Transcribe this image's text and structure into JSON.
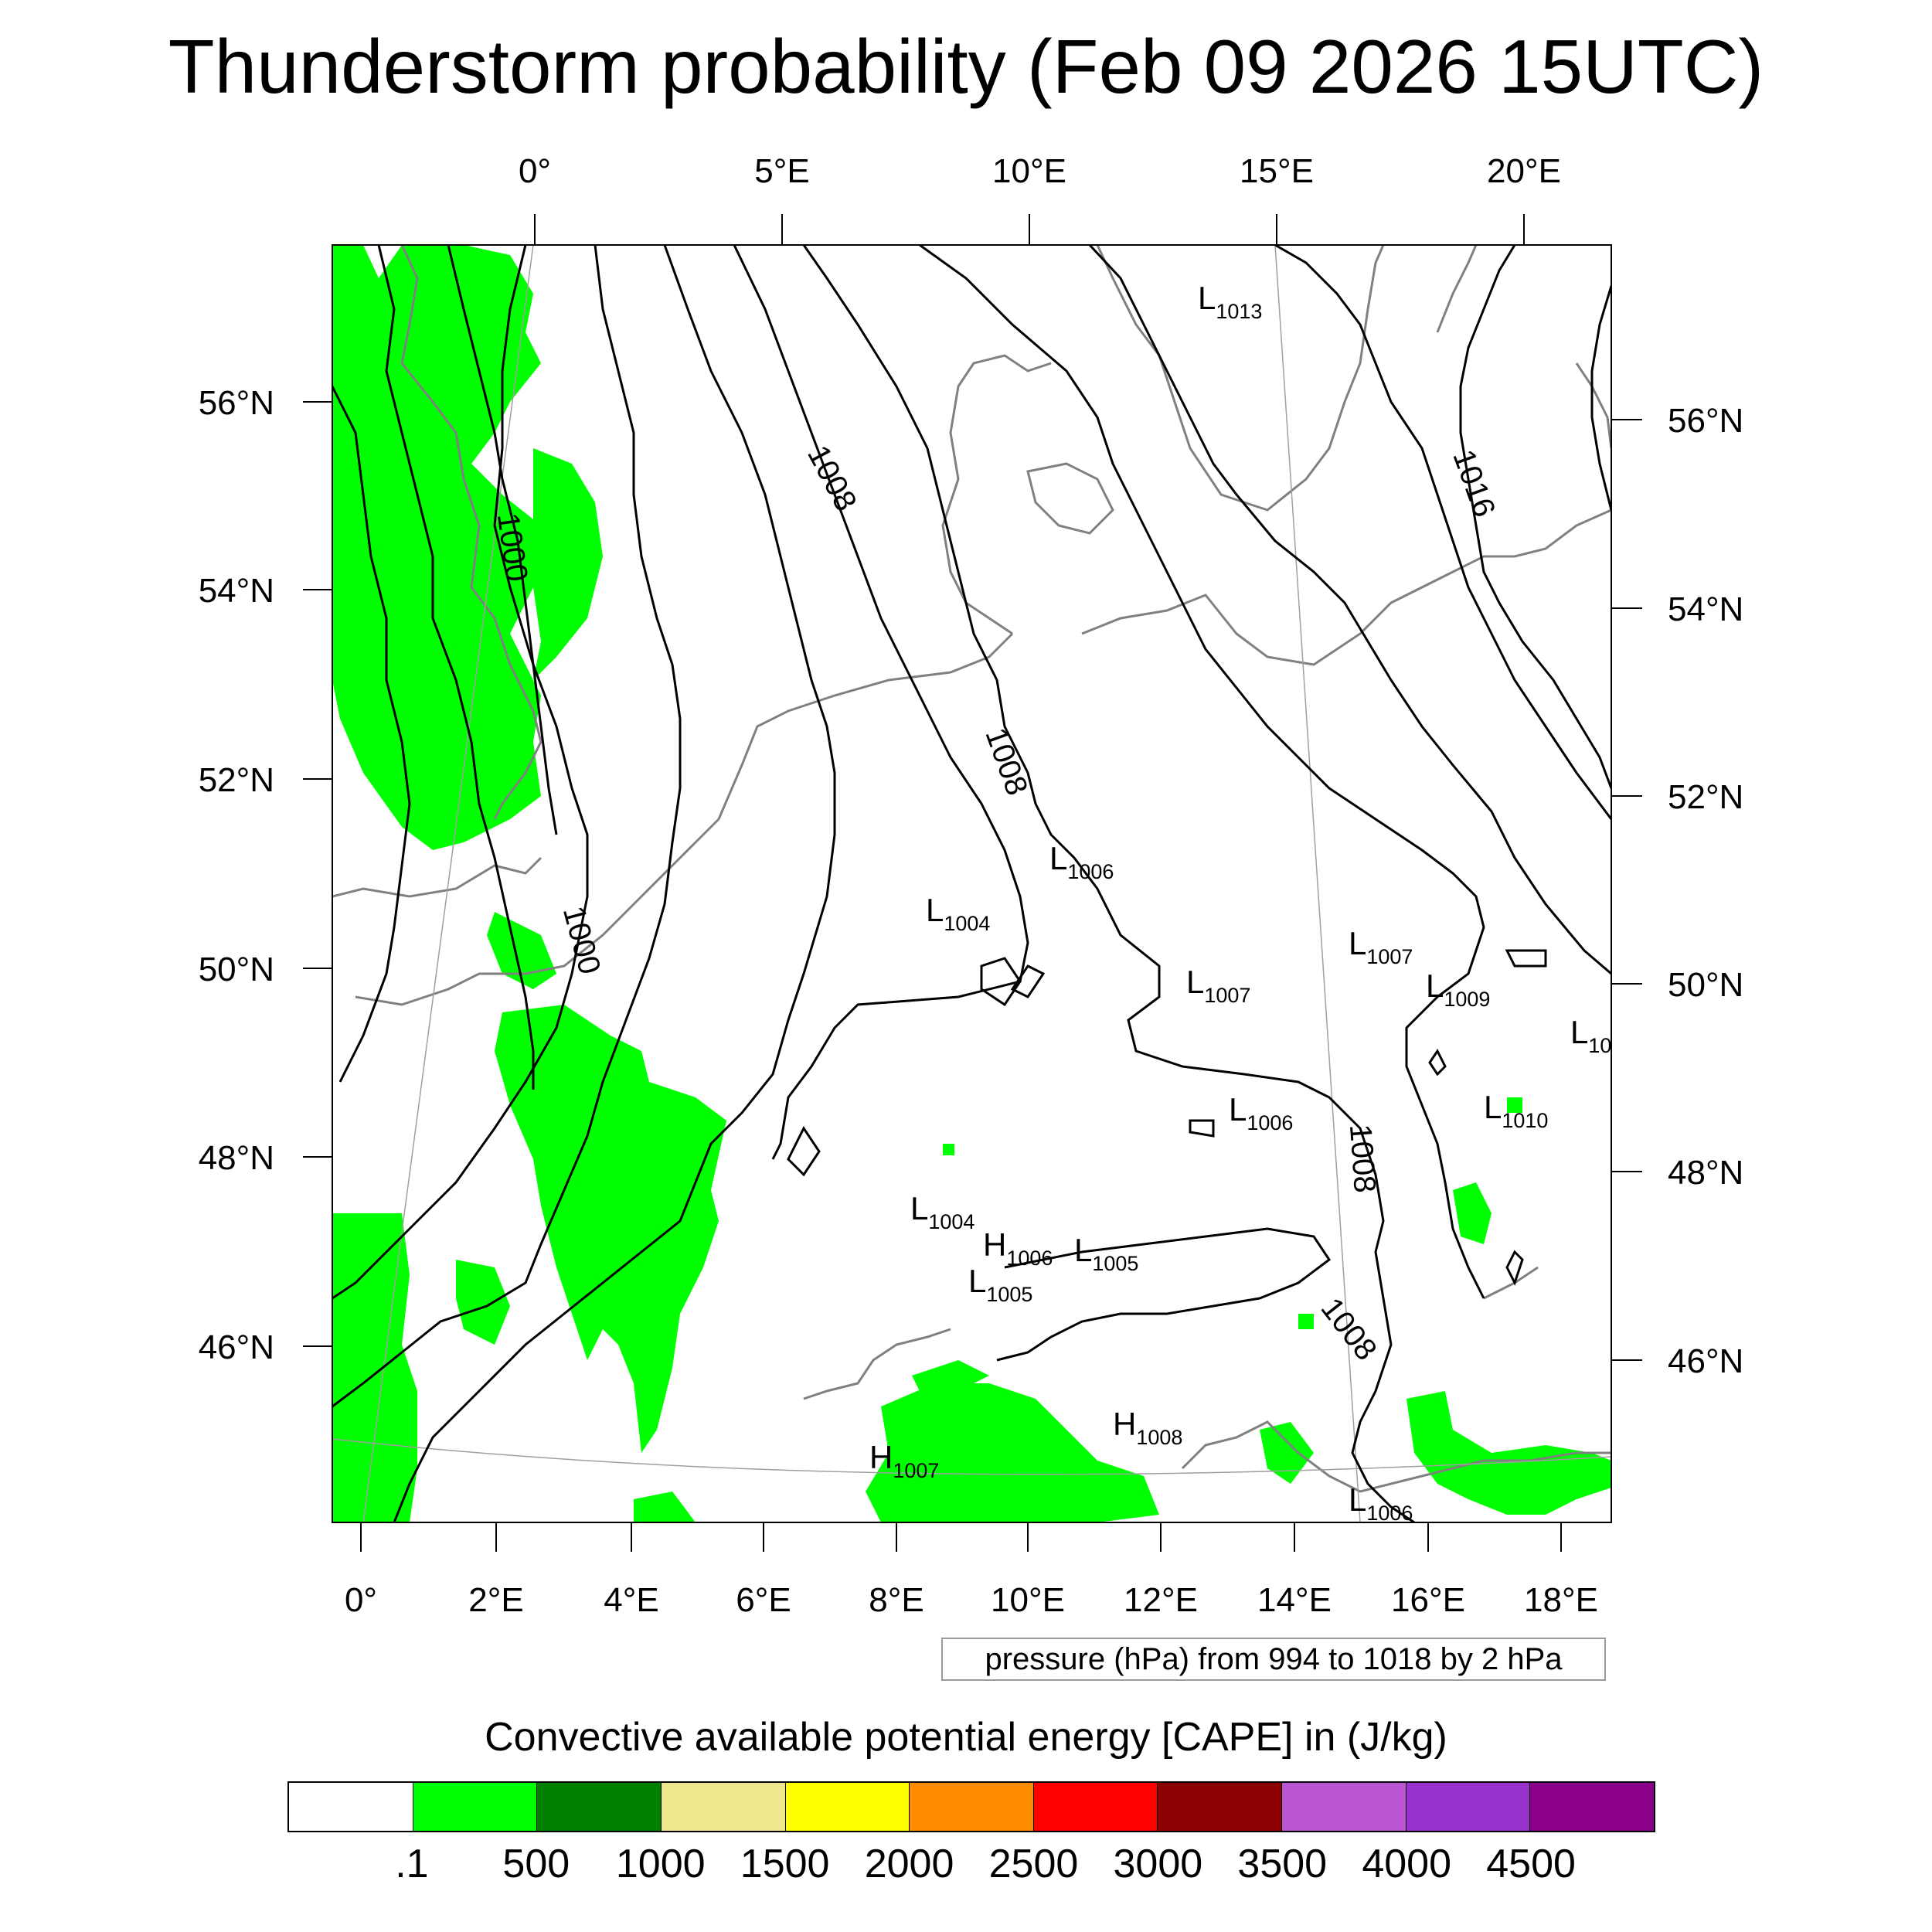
{
  "title": "Thunderstorm probability (Feb 09 2026 15UTC)",
  "map": {
    "top_lon_labels": [
      "0°",
      "5°E",
      "10°E",
      "15°E",
      "20°E"
    ],
    "bottom_lon_labels": [
      "0°",
      "2°E",
      "4°E",
      "6°E",
      "8°E",
      "10°E",
      "12°E",
      "14°E",
      "16°E",
      "18°E"
    ],
    "left_lat_labels": [
      "56°N",
      "54°N",
      "52°N",
      "50°N",
      "48°N",
      "46°N"
    ],
    "right_lat_labels": [
      "56°N",
      "54°N",
      "52°N",
      "50°N",
      "48°N",
      "46°N"
    ],
    "isobar_labels": [
      "1000",
      "1000",
      "1008",
      "1008",
      "1016",
      "1008",
      "1008"
    ],
    "pressure_centers": [
      {
        "type": "L",
        "value": "1013"
      },
      {
        "type": "L",
        "value": "1006"
      },
      {
        "type": "L",
        "value": "1004"
      },
      {
        "type": "L",
        "value": "1007"
      },
      {
        "type": "L",
        "value": "1009"
      },
      {
        "type": "L",
        "value": "1007"
      },
      {
        "type": "L",
        "value": "10"
      },
      {
        "type": "L",
        "value": "1010"
      },
      {
        "type": "L",
        "value": "1006"
      },
      {
        "type": "L",
        "value": "1004"
      },
      {
        "type": "H",
        "value": "1006"
      },
      {
        "type": "L",
        "value": "1005"
      },
      {
        "type": "L",
        "value": "1005"
      },
      {
        "type": "H",
        "value": "1008"
      },
      {
        "type": "H",
        "value": "1007"
      },
      {
        "type": "L",
        "value": "1006"
      }
    ],
    "colors": {
      "cape_fill": "#00ff00",
      "isobar": "#000000",
      "coastline": "#808080",
      "frame": "#000000"
    }
  },
  "contour_note": "pressure (hPa) from 994 to 1018 by 2 hPa",
  "colorbar": {
    "title": "Convective available potential energy [CAPE] in (J/kg)",
    "colors": [
      "#ffffff",
      "#00ff00",
      "#008000",
      "#f0e68c",
      "#ffff00",
      "#ff8c00",
      "#ff0000",
      "#8b0000",
      "#ba55d3",
      "#9932cc",
      "#8b008b"
    ],
    "labels": [
      ".1",
      "500",
      "1000",
      "1500",
      "2000",
      "2500",
      "3000",
      "3500",
      "4000",
      "4500"
    ]
  }
}
